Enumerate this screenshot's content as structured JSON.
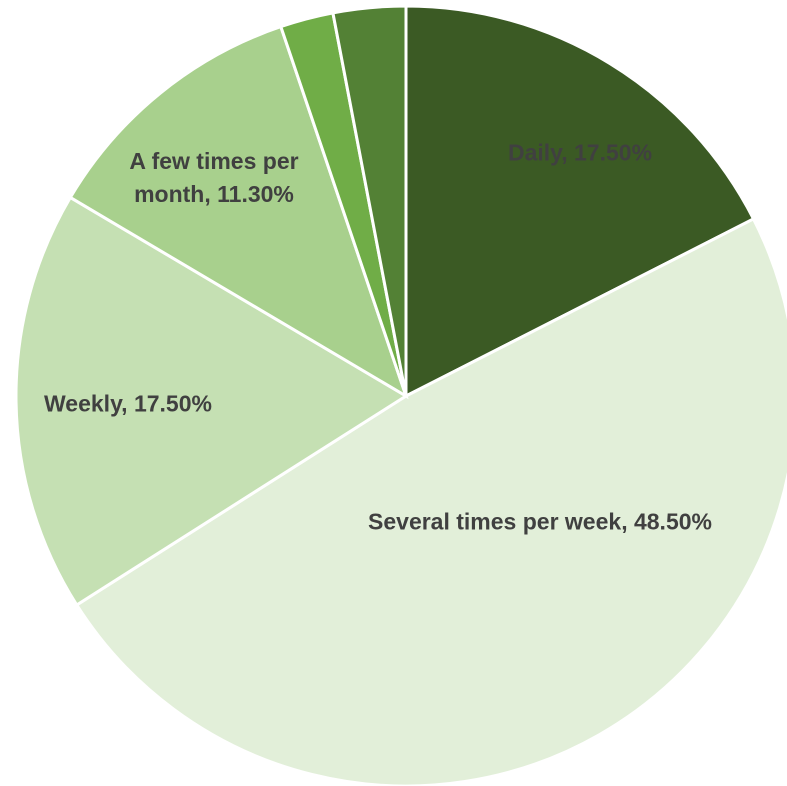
{
  "chart_data": {
    "type": "pie",
    "categories": [
      "Daily",
      "Several times per week",
      "Weekly",
      "A few times per month",
      null,
      null
    ],
    "values": [
      17.5,
      48.5,
      17.5,
      11.3,
      2.2,
      3.0
    ],
    "value_labels": [
      "17.50%",
      "48.50%",
      "17.50%",
      "11.30%",
      null,
      null
    ],
    "colors": [
      "#3b5a24",
      "#e2efd9",
      "#c5e0b3",
      "#a8d08d",
      "#70ad47",
      "#538135"
    ]
  }
}
